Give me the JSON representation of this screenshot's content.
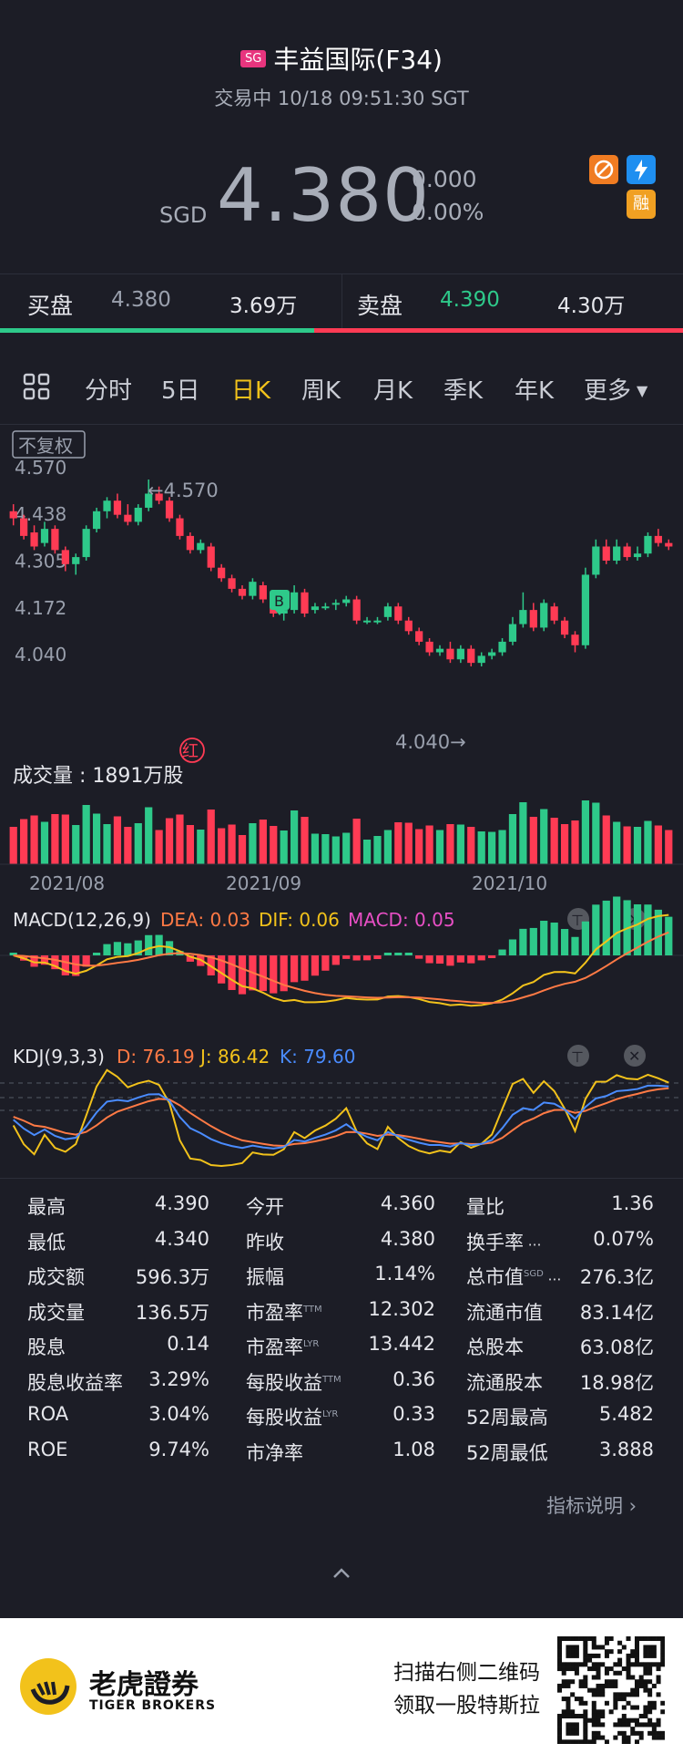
{
  "header": {
    "market_badge": "SG",
    "title": "丰益国际(F34)",
    "status": "交易中 10/18 09:51:30 SGT",
    "currency": "SGD",
    "price": "4.380",
    "change": "0.000",
    "change_pct": "0.00%",
    "tag_fin": "融"
  },
  "book": {
    "bid_label": "买盘",
    "bid_price": "4.380",
    "bid_vol": "3.69万",
    "ask_label": "卖盘",
    "ask_price": "4.390",
    "ask_vol": "4.30万"
  },
  "tabs": [
    "分时",
    "5日",
    "日K",
    "周K",
    "月K",
    "季K",
    "年K",
    "更多"
  ],
  "active_tab": "日K",
  "chart_labels": {
    "adjust": "不复权",
    "high_mark": "←4.570",
    "low_mark": "4.040→",
    "buy_mark": "B",
    "red_mark": "红",
    "volume_title": "成交量  : 1891万股",
    "macd_label": "MACD(12,26,9)",
    "macd_dea": "DEA: 0.03",
    "macd_dif": "DIF: 0.06",
    "macd_val": "MACD: 0.05",
    "kdj_label": "KDJ(9,3,3)",
    "kdj_d": "D: 76.19",
    "kdj_j": "J: 86.42",
    "kdj_k": "K: 79.60"
  },
  "colors": {
    "up": "#ff3b54",
    "down": "#2ec98a",
    "accent": "#f2c21b",
    "bg": "#1c1d26"
  },
  "chart_data": {
    "type": "candlestick",
    "price_ticks": [
      "4.570",
      "4.438",
      "4.305",
      "4.172",
      "4.040"
    ],
    "ylim": [
      4.04,
      4.57
    ],
    "x_ticks": [
      "2021/08",
      "2021/09",
      "2021/10"
    ],
    "candles": [
      [
        4.48,
        4.5,
        4.44,
        4.46
      ],
      [
        4.46,
        4.47,
        4.4,
        4.41
      ],
      [
        4.42,
        4.44,
        4.37,
        4.38
      ],
      [
        4.39,
        4.45,
        4.38,
        4.43
      ],
      [
        4.43,
        4.44,
        4.36,
        4.37
      ],
      [
        4.37,
        4.38,
        4.31,
        4.33
      ],
      [
        4.33,
        4.36,
        4.3,
        4.35
      ],
      [
        4.35,
        4.44,
        4.34,
        4.43
      ],
      [
        4.43,
        4.49,
        4.42,
        4.48
      ],
      [
        4.48,
        4.52,
        4.46,
        4.51
      ],
      [
        4.51,
        4.53,
        4.46,
        4.47
      ],
      [
        4.47,
        4.5,
        4.44,
        4.45
      ],
      [
        4.45,
        4.5,
        4.44,
        4.49
      ],
      [
        4.49,
        4.57,
        4.48,
        4.53
      ],
      [
        4.53,
        4.55,
        4.5,
        4.51
      ],
      [
        4.51,
        4.52,
        4.45,
        4.46
      ],
      [
        4.46,
        4.47,
        4.4,
        4.41
      ],
      [
        4.41,
        4.42,
        4.36,
        4.37
      ],
      [
        4.37,
        4.4,
        4.36,
        4.39
      ],
      [
        4.38,
        4.39,
        4.31,
        4.32
      ],
      [
        4.32,
        4.33,
        4.28,
        4.29
      ],
      [
        4.29,
        4.3,
        4.25,
        4.26
      ],
      [
        4.26,
        4.27,
        4.23,
        4.24
      ],
      [
        4.24,
        4.29,
        4.23,
        4.28
      ],
      [
        4.27,
        4.28,
        4.22,
        4.23
      ],
      [
        4.23,
        4.24,
        4.18,
        4.19
      ],
      [
        4.19,
        4.21,
        4.17,
        4.2
      ],
      [
        4.2,
        4.27,
        4.19,
        4.25
      ],
      [
        4.25,
        4.26,
        4.18,
        4.19
      ],
      [
        4.2,
        4.22,
        4.19,
        4.21
      ],
      [
        4.21,
        4.22,
        4.2,
        4.21
      ],
      [
        4.22,
        4.23,
        4.2,
        4.22
      ],
      [
        4.22,
        4.24,
        4.21,
        4.23
      ],
      [
        4.23,
        4.24,
        4.16,
        4.17
      ],
      [
        4.17,
        4.18,
        4.16,
        4.17
      ],
      [
        4.17,
        4.18,
        4.16,
        4.17
      ],
      [
        4.18,
        4.22,
        4.17,
        4.21
      ],
      [
        4.21,
        4.22,
        4.16,
        4.17
      ],
      [
        4.17,
        4.18,
        4.13,
        4.14
      ],
      [
        4.14,
        4.15,
        4.1,
        4.11
      ],
      [
        4.11,
        4.12,
        4.07,
        4.08
      ],
      [
        4.08,
        4.1,
        4.07,
        4.09
      ],
      [
        4.09,
        4.11,
        4.05,
        4.06
      ],
      [
        4.06,
        4.1,
        4.05,
        4.09
      ],
      [
        4.09,
        4.1,
        4.04,
        4.05
      ],
      [
        4.05,
        4.08,
        4.04,
        4.07
      ],
      [
        4.07,
        4.09,
        4.06,
        4.08
      ],
      [
        4.08,
        4.12,
        4.07,
        4.11
      ],
      [
        4.11,
        4.18,
        4.1,
        4.16
      ],
      [
        4.16,
        4.25,
        4.15,
        4.2
      ],
      [
        4.2,
        4.22,
        4.14,
        4.15
      ],
      [
        4.15,
        4.23,
        4.14,
        4.22
      ],
      [
        4.21,
        4.22,
        4.16,
        4.17
      ],
      [
        4.17,
        4.18,
        4.12,
        4.13
      ],
      [
        4.13,
        4.14,
        4.08,
        4.1
      ],
      [
        4.1,
        4.32,
        4.09,
        4.3
      ],
      [
        4.3,
        4.4,
        4.29,
        4.38
      ],
      [
        4.38,
        4.4,
        4.33,
        4.34
      ],
      [
        4.34,
        4.4,
        4.33,
        4.38
      ],
      [
        4.38,
        4.39,
        4.34,
        4.35
      ],
      [
        4.35,
        4.38,
        4.34,
        4.36
      ],
      [
        4.36,
        4.42,
        4.35,
        4.41
      ],
      [
        4.41,
        4.43,
        4.38,
        4.39
      ],
      [
        4.39,
        4.4,
        4.37,
        4.38
      ]
    ],
    "volume_unit": "万股",
    "volume_last": 1891
  },
  "stats": [
    [
      "最高",
      "4.390",
      "今开",
      "4.360",
      "量比",
      "1.36"
    ],
    [
      "最低",
      "4.340",
      "昨收",
      "4.380",
      "换手率",
      "0.07%"
    ],
    [
      "成交额",
      "596.3万",
      "振幅",
      "1.14%",
      "总市值",
      "276.3亿"
    ],
    [
      "成交量",
      "136.5万",
      "市盈率",
      "12.302",
      "流通市值",
      "83.14亿"
    ],
    [
      "股息",
      "0.14",
      "市盈率",
      "13.442",
      "总股本",
      "63.08亿"
    ],
    [
      "股息收益率",
      "3.29%",
      "每股收益",
      "0.36",
      "流通股本",
      "18.98亿"
    ],
    [
      "ROA",
      "3.04%",
      "每股收益",
      "0.33",
      "52周最高",
      "5.482"
    ],
    [
      "ROE",
      "9.74%",
      "市净率",
      "1.08",
      "52周最低",
      "3.888"
    ]
  ],
  "stat_sups": {
    "pe_ttm": "TTM",
    "pe_lyr": "LYR",
    "eps_ttm": "TTM",
    "eps_lyr": "LYR",
    "mcap": "SGD"
  },
  "stats_link": "指标说明 ›",
  "footer": {
    "brand_cn": "老虎證券",
    "brand_en": "TIGER BROKERS",
    "promo1": "扫描右侧二维码",
    "promo2": "领取一股特斯拉"
  }
}
